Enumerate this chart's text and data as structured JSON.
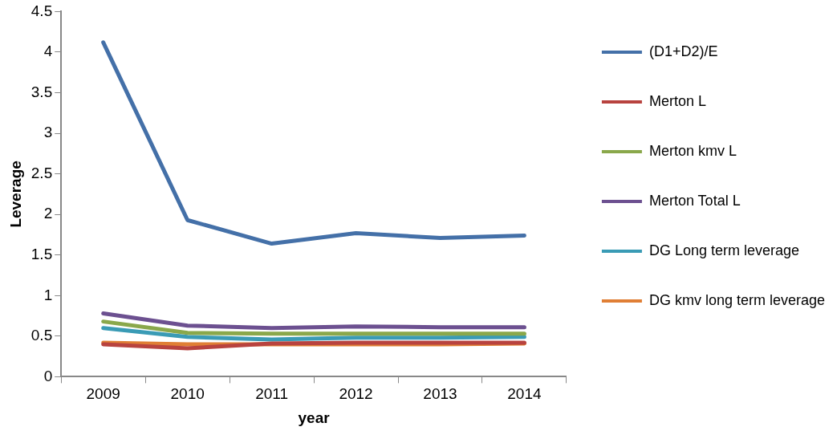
{
  "chart_data": {
    "type": "line",
    "xlabel": "year",
    "ylabel": "Leverage",
    "categories": [
      "2009",
      "2010",
      "2011",
      "2012",
      "2013",
      "2014"
    ],
    "series": [
      {
        "name": "(D1+D2)/E",
        "color": "#4470a8",
        "values": [
          4.12,
          1.93,
          1.64,
          1.77,
          1.71,
          1.74
        ]
      },
      {
        "name": "Merton L",
        "color": "#b8433f",
        "values": [
          0.4,
          0.35,
          0.41,
          0.42,
          0.42,
          0.42
        ]
      },
      {
        "name": "Merton kmv L",
        "color": "#8aa84b",
        "values": [
          0.68,
          0.54,
          0.53,
          0.53,
          0.53,
          0.53
        ]
      },
      {
        "name": "Merton Total L",
        "color": "#6c5090",
        "values": [
          0.78,
          0.63,
          0.6,
          0.62,
          0.61,
          0.61
        ]
      },
      {
        "name": "DG Long term leverage",
        "color": "#3a9bb5",
        "values": [
          0.6,
          0.49,
          0.46,
          0.48,
          0.48,
          0.49
        ]
      },
      {
        "name": "DG kmv long term leverage",
        "color": "#e07f35",
        "values": [
          0.42,
          0.4,
          0.4,
          0.4,
          0.4,
          0.41
        ]
      }
    ],
    "ylim": [
      0,
      4.5
    ],
    "yticks": [
      0,
      0.5,
      1,
      1.5,
      2,
      2.5,
      3,
      3.5,
      4,
      4.5
    ],
    "grid": false,
    "legend": "right",
    "marker": "none",
    "line_style": "solid"
  }
}
